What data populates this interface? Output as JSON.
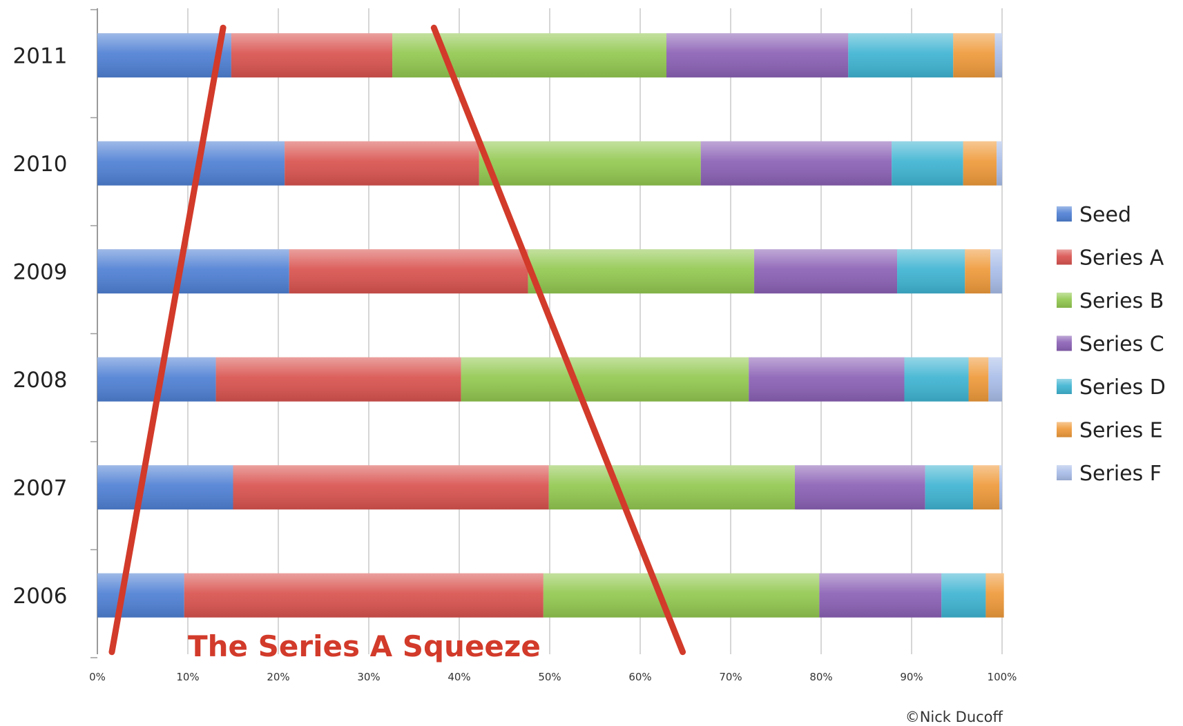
{
  "chart_data": {
    "type": "bar",
    "orientation": "horizontal",
    "stacked": "percent",
    "categories": [
      "2011",
      "2010",
      "2009",
      "2008",
      "2007",
      "2006"
    ],
    "series": [
      {
        "name": "Seed",
        "color": "#4f80d4",
        "values": [
          14.8,
          20.7,
          21.2,
          13.1,
          15.0,
          9.6
        ]
      },
      {
        "name": "Series A",
        "color": "#d9534f",
        "values": [
          17.8,
          21.5,
          26.4,
          27.1,
          34.9,
          39.7
        ]
      },
      {
        "name": "Series B",
        "color": "#92c850",
        "values": [
          30.3,
          24.5,
          25.0,
          31.8,
          27.2,
          30.5
        ]
      },
      {
        "name": "Series C",
        "color": "#8b61b5",
        "values": [
          20.1,
          21.1,
          15.8,
          17.2,
          14.4,
          13.5
        ]
      },
      {
        "name": "Series D",
        "color": "#3fb4d2",
        "values": [
          11.6,
          7.9,
          7.5,
          7.1,
          5.3,
          4.9
        ]
      },
      {
        "name": "Series E",
        "color": "#ef9a3a",
        "values": [
          4.6,
          3.7,
          2.8,
          2.2,
          2.9,
          2.0
        ]
      },
      {
        "name": "Series F",
        "color": "#a9bde8",
        "values": [
          0.8,
          0.6,
          1.3,
          1.5,
          0.3,
          0.0
        ]
      }
    ],
    "xticks": [
      "0%",
      "10%",
      "20%",
      "30%",
      "40%",
      "50%",
      "60%",
      "70%",
      "80%",
      "90%",
      "100%"
    ],
    "xlim": [
      0,
      100
    ],
    "grid": true,
    "legend_position": "right",
    "annotation": "The Series A Squeeze",
    "trend_lines": [
      {
        "from": {
          "x": 1.6,
          "category": "2006"
        },
        "to": {
          "x": 13.9,
          "category": "2011"
        },
        "color": "#d23a2a"
      },
      {
        "from": {
          "x": 37.2,
          "category": "2011"
        },
        "to": {
          "x": 64.7,
          "category": "2006"
        },
        "color": "#d23a2a"
      }
    ],
    "credit": "©Nick Ducoff"
  }
}
